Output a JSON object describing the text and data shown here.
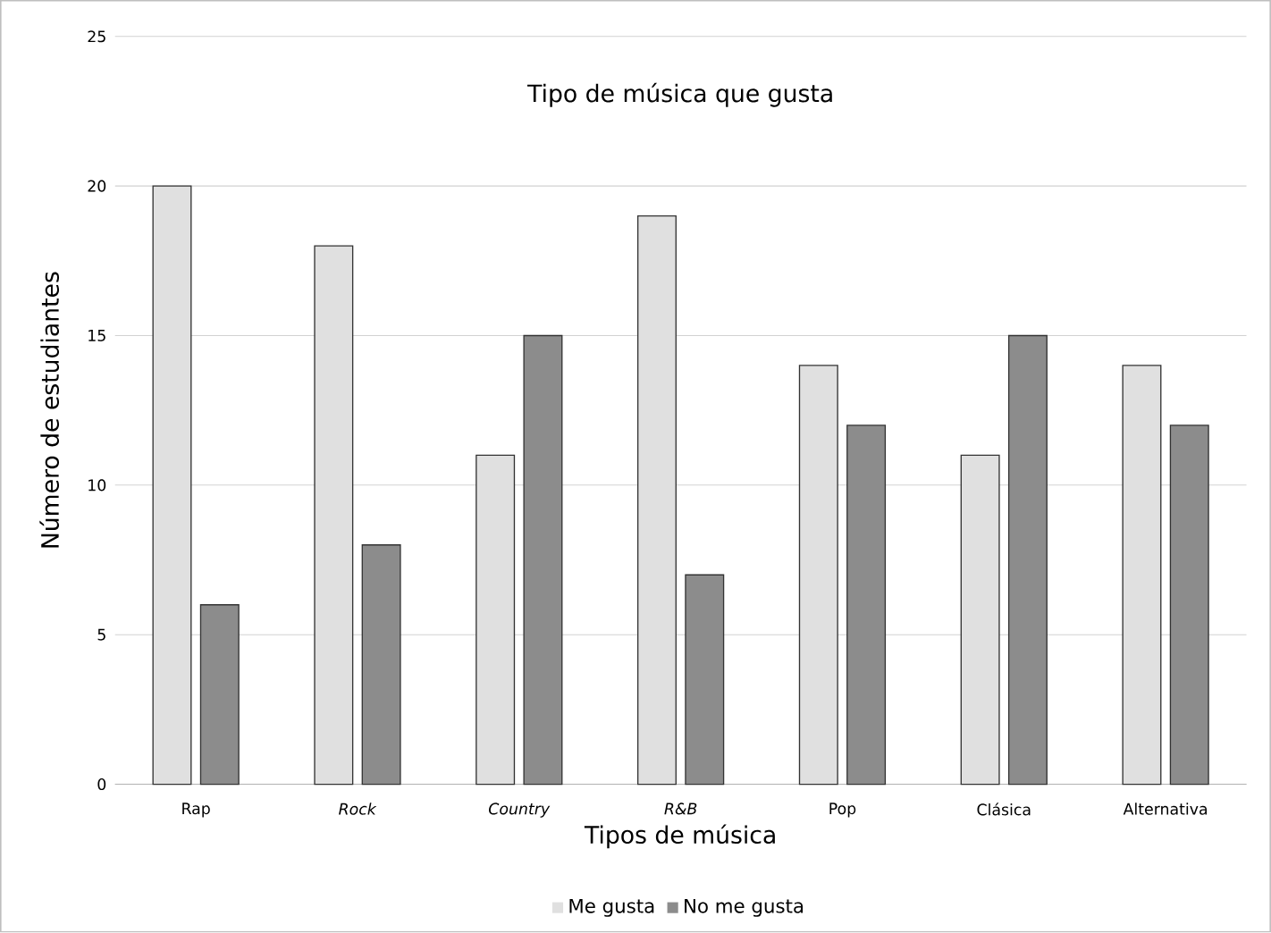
{
  "chart_data": {
    "type": "bar",
    "title": "Tipo de música que gusta",
    "xlabel": "Tipos de música",
    "ylabel": "Número de estudiantes",
    "categories": [
      "Rap",
      "*Rock*",
      "*Country*",
      "*R&B*",
      "Pop",
      "Clásica",
      "Alternativa"
    ],
    "series": [
      {
        "name": "Me gusta",
        "color": "#e0e0e0",
        "values": [
          20,
          18,
          11,
          19,
          14,
          11,
          14
        ]
      },
      {
        "name": "No me gusta",
        "color": "#8c8c8c",
        "values": [
          6,
          8,
          15,
          7,
          12,
          15,
          12
        ]
      }
    ],
    "ylim": [
      0,
      25
    ],
    "yticks": [
      0,
      5,
      10,
      15,
      20,
      25
    ],
    "grid": "y",
    "legend": "bottom"
  }
}
